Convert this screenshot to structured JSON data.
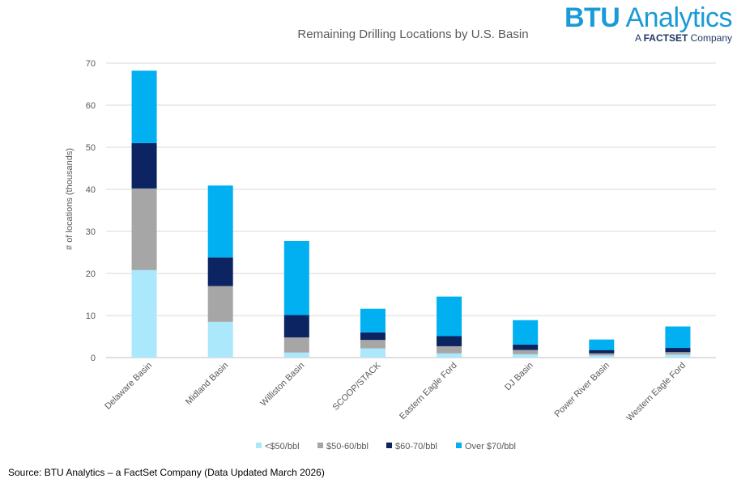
{
  "logo": {
    "brand_bold": "BTU",
    "brand_rest": " Analytics",
    "tagline_prefix": "A ",
    "tagline_bold": "FACTSET",
    "tagline_suffix": " Company"
  },
  "source": "Source: BTU Analytics – a FactSet Company (Data Updated March 2026)",
  "chart_data": {
    "type": "bar",
    "stacked": true,
    "title": "Remaining Drilling Locations by U.S. Basin",
    "xlabel": "",
    "ylabel": "# of locations (thousands)",
    "ylim": [
      0,
      70
    ],
    "yticks": [
      0,
      10,
      20,
      30,
      40,
      50,
      60,
      70
    ],
    "grid": true,
    "legend_position": "bottom",
    "categories": [
      "Delaware Basin",
      "Midland Basin",
      "Williston Basin",
      "SCOOP/STACK",
      "Eastern Eagle Ford",
      "DJ Basin",
      "Power River Basin",
      "Western Eagle Ford"
    ],
    "series": [
      {
        "name": "<$50/bbl",
        "color": "#abe8fb",
        "values": [
          20.8,
          8.5,
          1.2,
          2.2,
          1.0,
          0.8,
          0.5,
          0.7
        ]
      },
      {
        "name": "$50-60/bbl",
        "color": "#a6a6a6",
        "values": [
          19.4,
          8.5,
          3.6,
          2.0,
          1.7,
          1.0,
          0.5,
          0.6
        ]
      },
      {
        "name": "$60-70/bbl",
        "color": "#0c2461",
        "values": [
          10.8,
          6.8,
          5.3,
          1.8,
          2.4,
          1.3,
          0.8,
          1.0
        ]
      },
      {
        "name": "Over $70/bbl",
        "color": "#00b0f0",
        "values": [
          17.2,
          17.1,
          17.6,
          5.6,
          9.4,
          5.8,
          2.5,
          5.1
        ]
      }
    ]
  }
}
